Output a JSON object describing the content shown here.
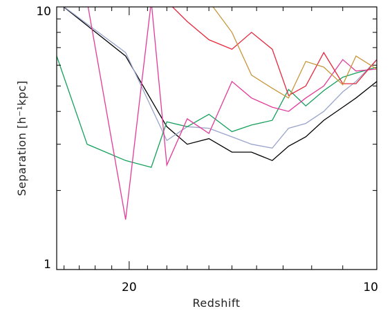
{
  "chart_data": {
    "type": "line",
    "xlabel": "Redshift",
    "ylabel": "Separation  [h⁻¹kpc]",
    "x_scale": "log",
    "x_reversed": true,
    "xlim": [
      24.5,
      10
    ],
    "ylim": [
      1,
      10
    ],
    "y_scale": "log",
    "x_tick_labels": [
      {
        "value": 20,
        "label": "20"
      },
      {
        "value": 10,
        "label": "10"
      }
    ],
    "y_tick_labels": [
      {
        "value": 10,
        "label": "10"
      },
      {
        "value": 1,
        "label": "1"
      }
    ],
    "series": [
      {
        "color": "#000000",
        "x": [
          24.5,
          20.2,
          18.0,
          17.0,
          16.0,
          15.0,
          14.2,
          13.4,
          12.8,
          12.2,
          11.6,
          11.0,
          10.6,
          10.0
        ],
        "y": [
          10.5,
          6.5,
          3.5,
          3.0,
          3.15,
          2.8,
          2.8,
          2.6,
          2.95,
          3.2,
          3.7,
          4.15,
          4.5,
          5.2
        ]
      },
      {
        "color": "#9aa4cc",
        "x": [
          24.5,
          20.2,
          18.0,
          17.0,
          16.0,
          15.0,
          14.2,
          13.4,
          12.8,
          12.2,
          11.6,
          11.0,
          10.6,
          10.0
        ],
        "y": [
          10.5,
          6.7,
          3.1,
          3.5,
          3.45,
          3.2,
          3.0,
          2.9,
          3.45,
          3.6,
          4.0,
          4.75,
          5.2,
          6.3
        ]
      },
      {
        "color": "#13a05a",
        "x": [
          24.5,
          22.5,
          20.2,
          18.8,
          18.0,
          17.0,
          16.0,
          15.0,
          14.2,
          13.4,
          12.8,
          12.2,
          11.6,
          11.0,
          10.6,
          10.0
        ],
        "y": [
          6.5,
          3.0,
          2.6,
          2.45,
          3.65,
          3.5,
          3.9,
          3.35,
          3.55,
          3.7,
          4.85,
          4.2,
          4.8,
          5.4,
          5.6,
          5.9
        ]
      },
      {
        "color": "#e23a9a",
        "x": [
          24.5,
          22.5,
          20.2,
          18.8,
          18.0,
          17.0,
          16.0,
          15.0,
          14.2,
          13.4,
          12.8,
          12.2,
          11.6,
          11.0,
          10.6,
          10.0
        ],
        "y": [
          10.5,
          10.5,
          1.55,
          10.5,
          2.5,
          3.75,
          3.3,
          5.2,
          4.5,
          4.15,
          4.0,
          4.5,
          5.0,
          6.3,
          5.7,
          5.8
        ]
      },
      {
        "color": "#e6283c",
        "x": [
          24.5,
          18.0,
          17.0,
          16.0,
          15.0,
          14.2,
          13.4,
          12.8,
          12.2,
          11.6,
          11.0,
          10.6,
          10.0
        ],
        "y": [
          10.5,
          10.5,
          8.8,
          7.5,
          6.9,
          8.0,
          6.9,
          4.6,
          5.0,
          6.7,
          5.1,
          5.1,
          6.3
        ]
      },
      {
        "color": "#c8963c",
        "x": [
          24.5,
          17.0,
          16.0,
          15.0,
          14.2,
          13.4,
          12.8,
          12.2,
          11.6,
          11.0,
          10.6,
          10.0
        ],
        "y": [
          10.5,
          10.5,
          10.5,
          8.0,
          5.5,
          4.9,
          4.5,
          6.2,
          5.9,
          5.05,
          6.5,
          5.8
        ]
      }
    ]
  }
}
